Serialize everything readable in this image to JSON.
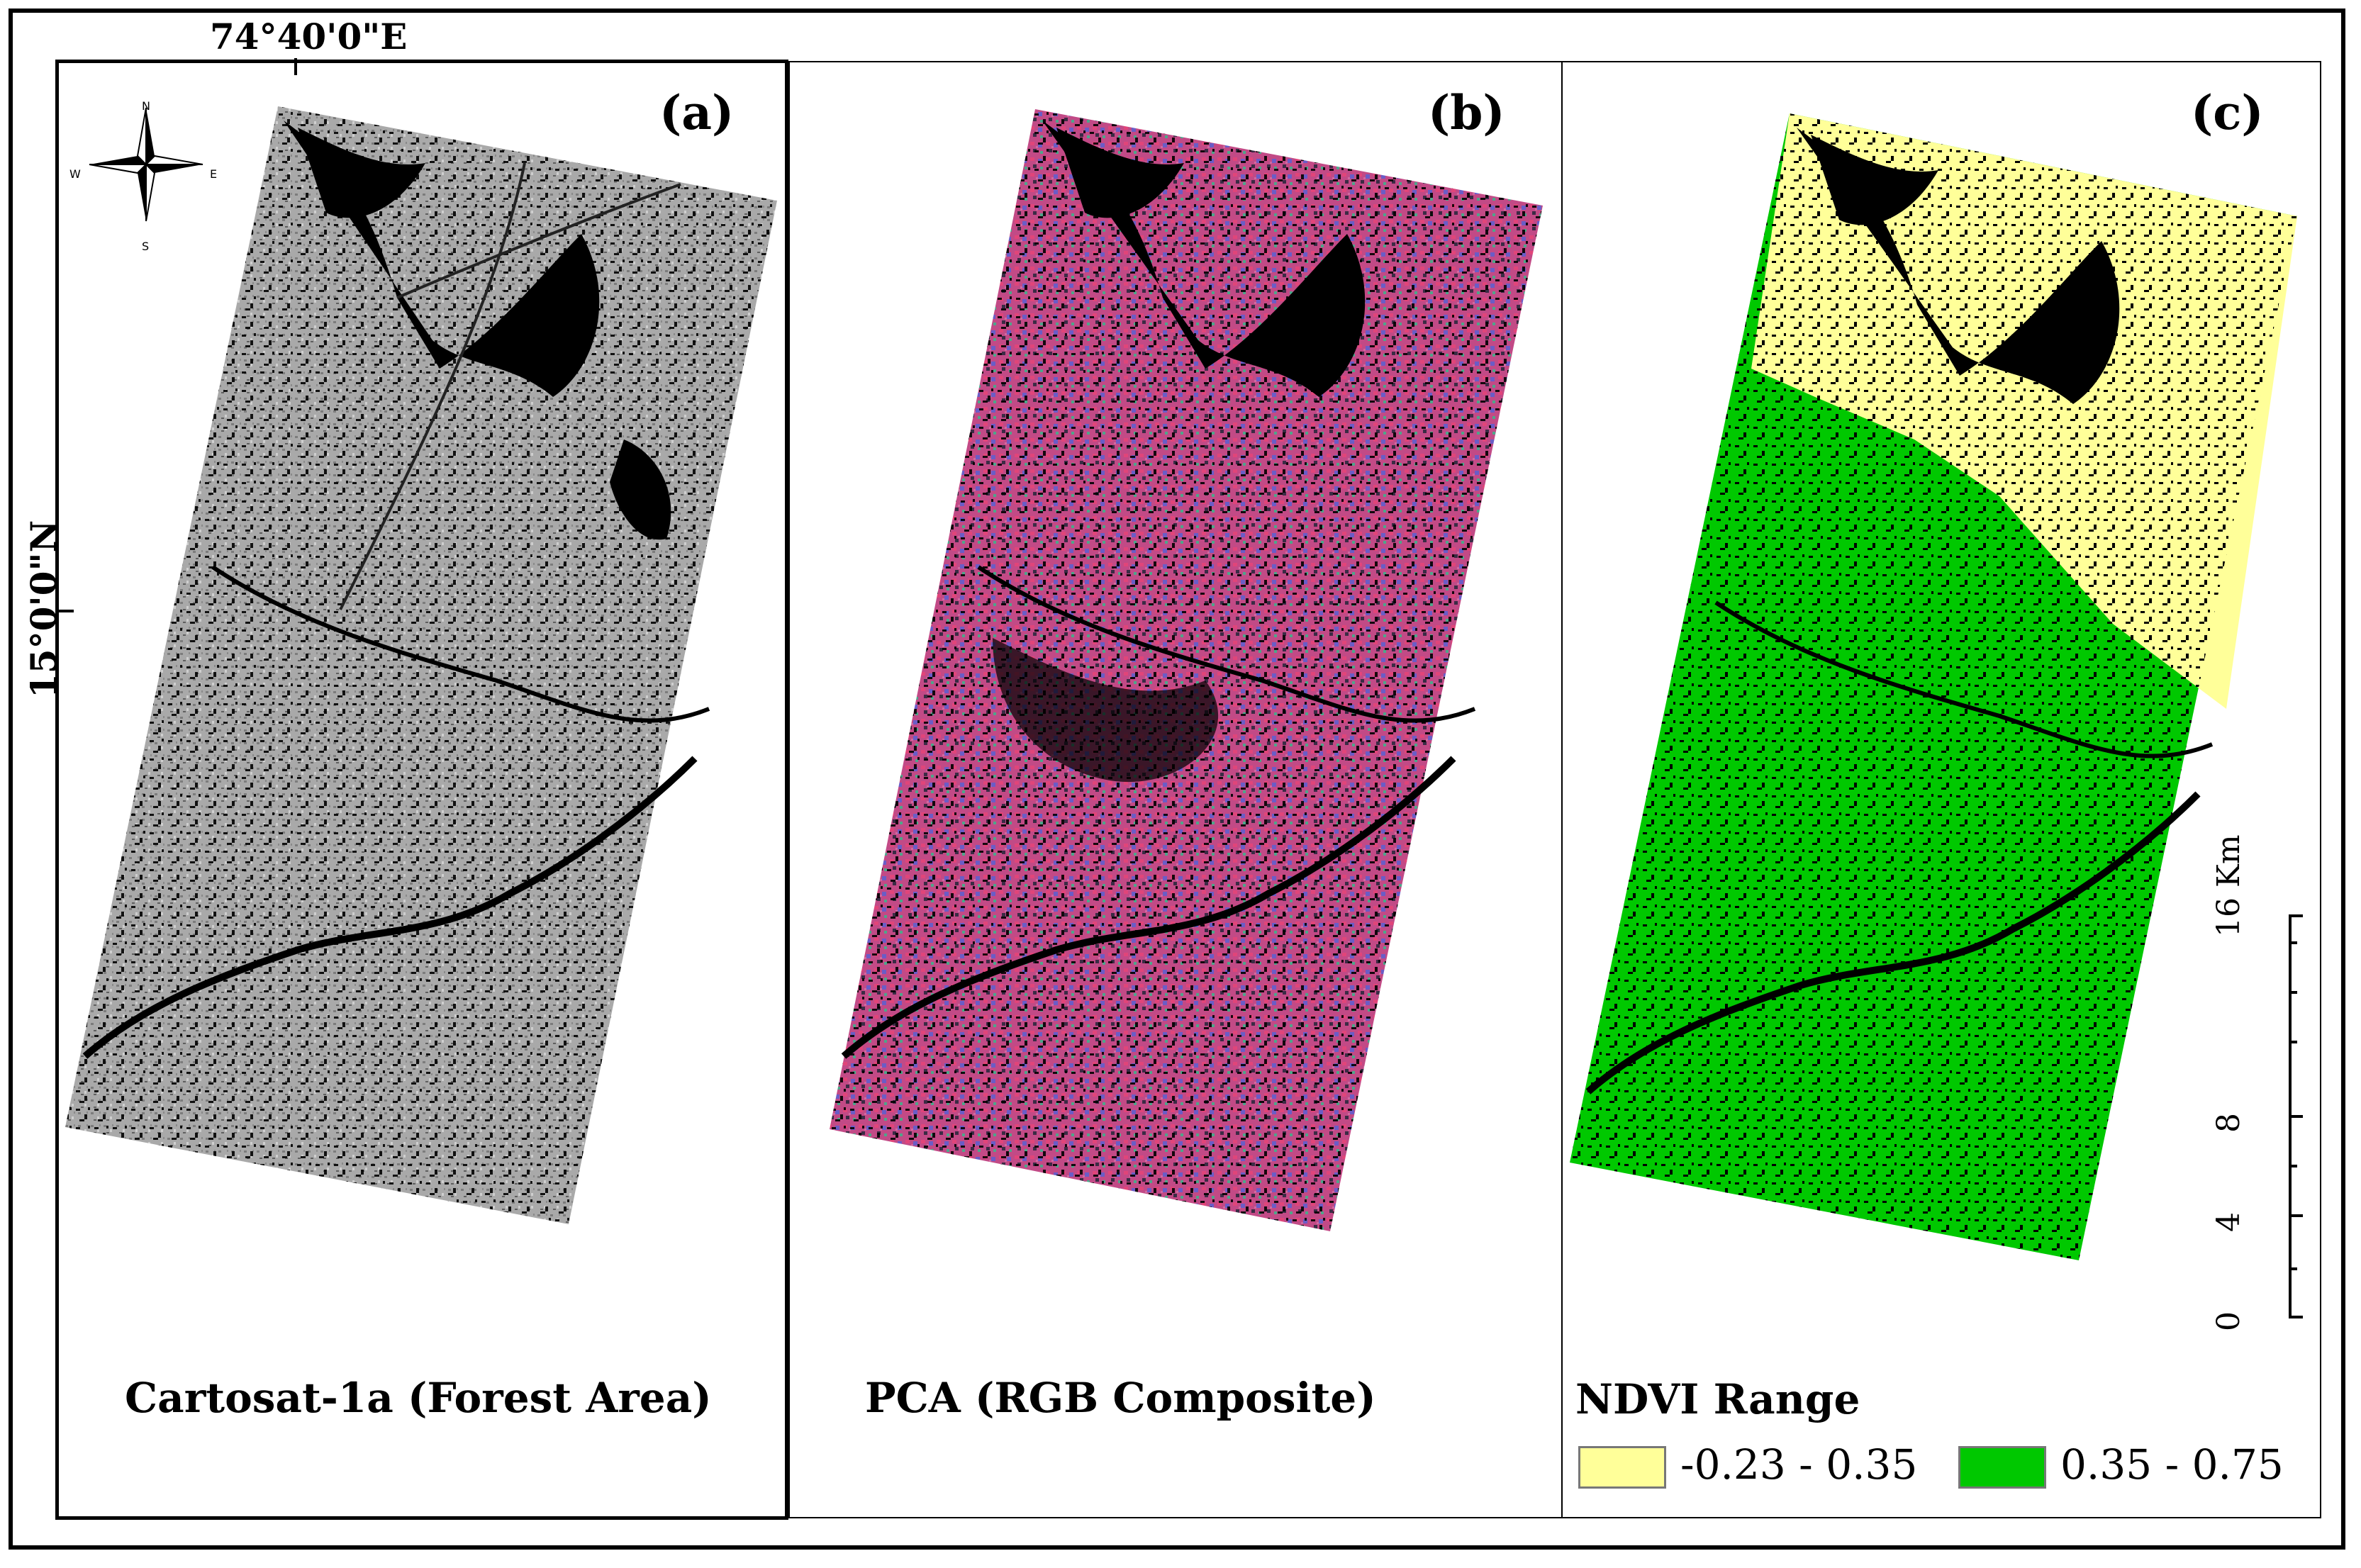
{
  "coordinates": {
    "longitude": "74°40'0\"E",
    "latitude": "15°0'0\"N"
  },
  "compass": {
    "n": "N",
    "s": "S",
    "e": "E",
    "w": "W"
  },
  "panels": [
    {
      "label": "(a)",
      "caption": "Cartosat-1a (Forest Area)"
    },
    {
      "label": "(b)",
      "caption": "PCA (RGB Composite)"
    },
    {
      "label": "(c)",
      "caption": "NDVI Range"
    }
  ],
  "legend": [
    {
      "range": "-0.23 - 0.35",
      "color": "#ffff99"
    },
    {
      "range": "0.35 - 0.75",
      "color": "#00c800"
    }
  ],
  "scale_bar": {
    "unit": "16 Km",
    "ticks": [
      "0",
      "4",
      "8"
    ]
  }
}
